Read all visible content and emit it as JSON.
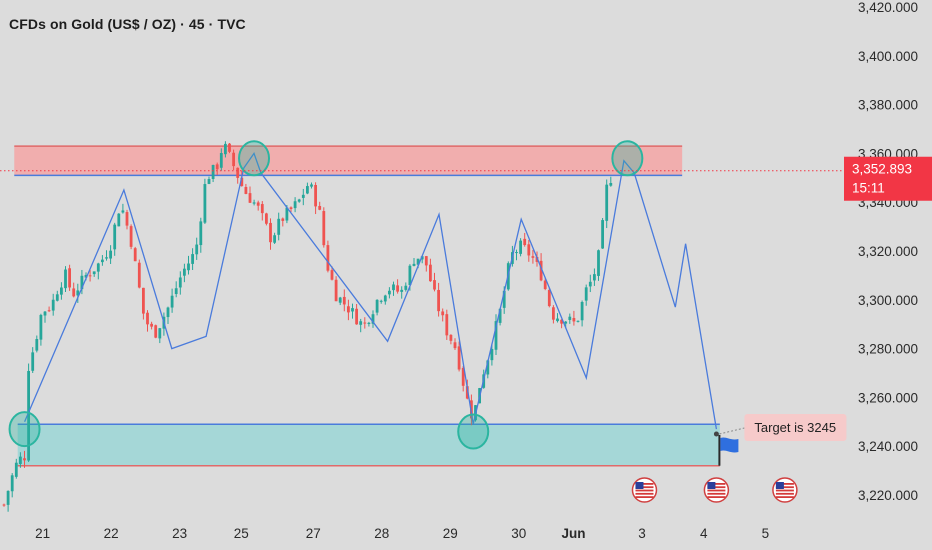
{
  "header": {
    "title": "CFDs on Gold (US$ / OZ) · 45 · TVC"
  },
  "colors": {
    "background": "#dcdcdc",
    "candle_up": "#26a69a",
    "candle_down": "#ef5350",
    "resistance_zone": "#f4a6a6",
    "support_zone": "#9fd6d6",
    "pattern_line": "#4a7bdc",
    "price_label": "#f23645",
    "circle_marker": "#2bb5a0"
  },
  "chart_data": {
    "type": "candlestick",
    "title": "CFDs on Gold (US$ / OZ) · 45 · TVC",
    "ylim": [
      3212,
      3423
    ],
    "y_ticks": [
      "3,420.000",
      "3,400.000",
      "3,380.000",
      "3,360.000",
      "3,340.000",
      "3,320.000",
      "3,300.000",
      "3,280.000",
      "3,260.000",
      "3,240.000",
      "3,220.000"
    ],
    "y_tick_values": [
      3420,
      3400,
      3380,
      3360,
      3340,
      3320,
      3300,
      3280,
      3260,
      3240,
      3220
    ],
    "x_ticks": [
      "21",
      "22",
      "23",
      "25",
      "27",
      "28",
      "29",
      "30",
      "Jun",
      "3",
      "4",
      "5"
    ],
    "x_tick_positions": [
      0.55,
      1.55,
      2.55,
      3.45,
      4.5,
      5.5,
      6.5,
      7.5,
      8.3,
      9.3,
      10.2,
      11.1
    ],
    "xlim": [
      0,
      11.4
    ],
    "last_bar_x": 8.9,
    "current_price": {
      "value": 3352.893,
      "label": "3,352.893",
      "countdown": "15:11"
    },
    "close_path": [
      [
        0,
        3216
      ],
      [
        0.1,
        3226
      ],
      [
        0.2,
        3234
      ],
      [
        0.3,
        3236
      ],
      [
        0.33,
        3270
      ],
      [
        0.45,
        3282
      ],
      [
        0.55,
        3295
      ],
      [
        0.7,
        3298
      ],
      [
        0.8,
        3306
      ],
      [
        0.9,
        3310
      ],
      [
        1.0,
        3302
      ],
      [
        1.2,
        3310
      ],
      [
        1.4,
        3315
      ],
      [
        1.55,
        3322
      ],
      [
        1.7,
        3340
      ],
      [
        1.85,
        3325
      ],
      [
        2.05,
        3292
      ],
      [
        2.2,
        3286
      ],
      [
        2.4,
        3297
      ],
      [
        2.6,
        3311
      ],
      [
        2.8,
        3320
      ],
      [
        2.95,
        3350
      ],
      [
        3.1,
        3354
      ],
      [
        3.2,
        3364
      ],
      [
        3.35,
        3355
      ],
      [
        3.5,
        3345
      ],
      [
        3.7,
        3338
      ],
      [
        3.9,
        3325
      ],
      [
        4.05,
        3333
      ],
      [
        4.3,
        3340
      ],
      [
        4.45,
        3348
      ],
      [
        4.6,
        3337
      ],
      [
        4.7,
        3316
      ],
      [
        4.85,
        3302
      ],
      [
        5.05,
        3296
      ],
      [
        5.25,
        3289
      ],
      [
        5.45,
        3300
      ],
      [
        5.6,
        3305
      ],
      [
        5.8,
        3303
      ],
      [
        6.0,
        3318
      ],
      [
        6.15,
        3316
      ],
      [
        6.3,
        3300
      ],
      [
        6.45,
        3288
      ],
      [
        6.6,
        3280
      ],
      [
        6.75,
        3260
      ],
      [
        6.85,
        3251
      ],
      [
        6.95,
        3266
      ],
      [
        7.1,
        3280
      ],
      [
        7.25,
        3296
      ],
      [
        7.4,
        3318
      ],
      [
        7.55,
        3322
      ],
      [
        7.7,
        3318
      ],
      [
        7.85,
        3310
      ],
      [
        8.0,
        3294
      ],
      [
        8.2,
        3292
      ],
      [
        8.35,
        3290
      ],
      [
        8.5,
        3304
      ],
      [
        8.6,
        3309
      ],
      [
        8.7,
        3320
      ],
      [
        8.8,
        3346
      ],
      [
        8.9,
        3353
      ]
    ],
    "zones": {
      "resistance": {
        "from": 3351,
        "to": 3363,
        "x_start": 0.15,
        "x_end": 9.9
      },
      "support": {
        "from": 3232,
        "to": 3249,
        "x_start": 0.2,
        "x_end": 10.45
      }
    },
    "pattern_line": [
      [
        0.3,
        3250
      ],
      [
        1.75,
        3345
      ],
      [
        2.45,
        3280
      ],
      [
        2.95,
        3285
      ],
      [
        3.5,
        3354
      ],
      [
        3.65,
        3360
      ],
      [
        3.75,
        3352
      ],
      [
        5.6,
        3283
      ],
      [
        6.35,
        3335
      ],
      [
        6.85,
        3249
      ],
      [
        7.55,
        3333
      ],
      [
        8.5,
        3268
      ],
      [
        9.05,
        3357
      ],
      [
        9.2,
        3352
      ],
      [
        9.8,
        3297
      ],
      [
        9.95,
        3323
      ],
      [
        10.4,
        3247
      ]
    ],
    "circles": [
      {
        "x": 0.3,
        "y": 3247
      },
      {
        "x": 3.65,
        "y": 3358
      },
      {
        "x": 6.85,
        "y": 3246
      },
      {
        "x": 9.1,
        "y": 3358
      }
    ],
    "annotations": {
      "target_text": "Target is   3245",
      "target_value": 3245,
      "target_x": 10.4,
      "event_flags_x": [
        9.35,
        10.4,
        11.4
      ]
    }
  }
}
